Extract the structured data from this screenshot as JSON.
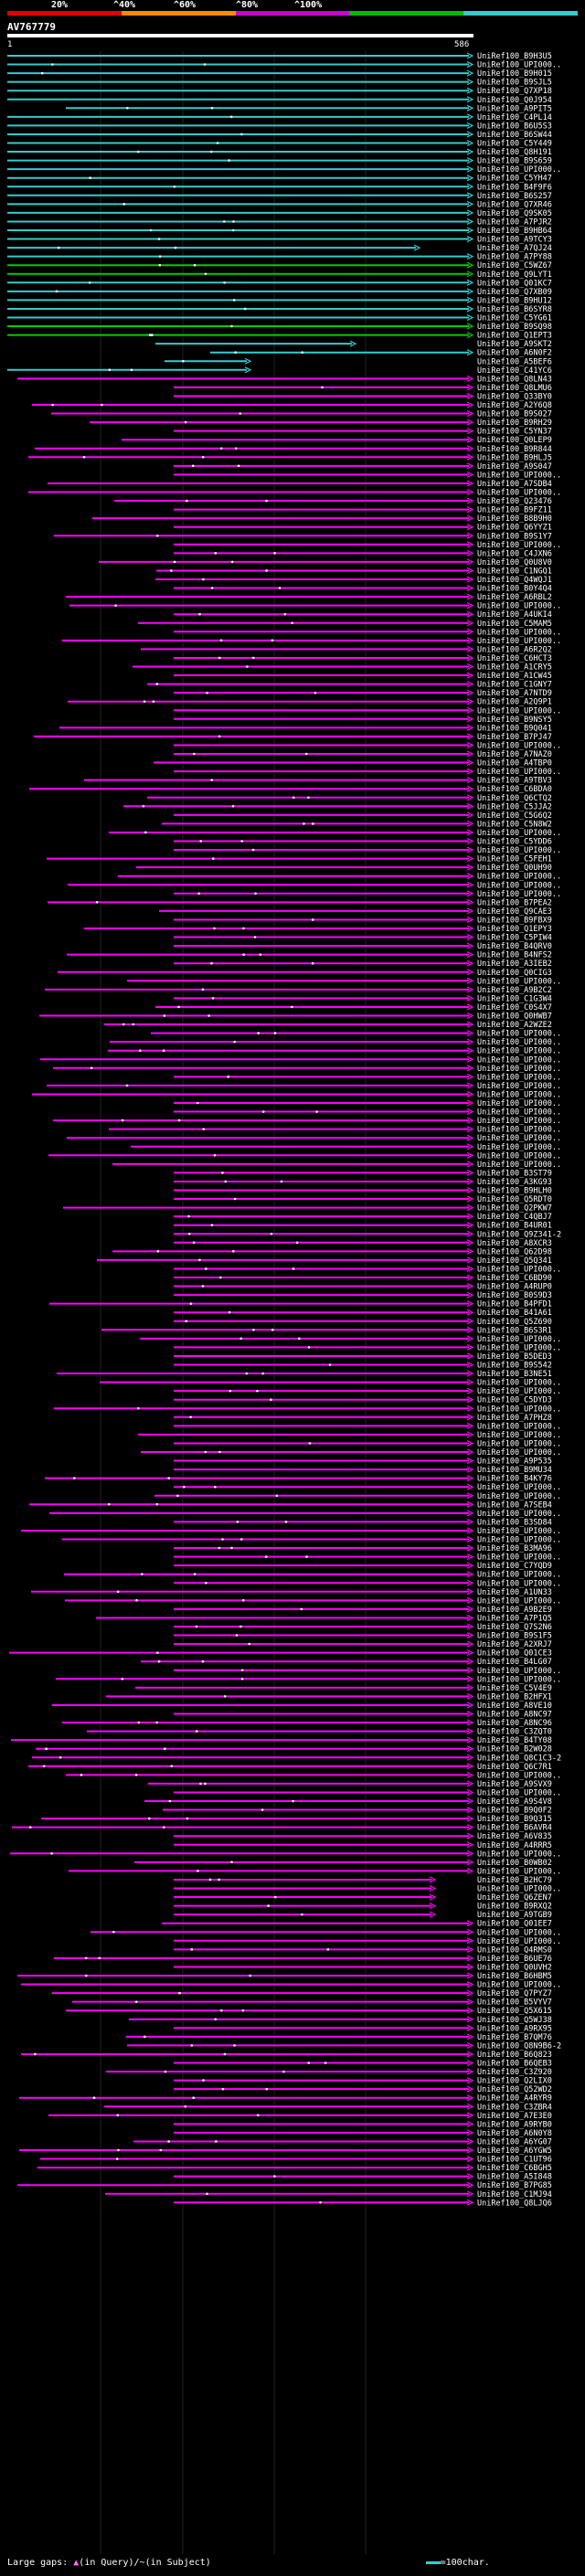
{
  "domain": "Chart",
  "query": {
    "id": "AV767779",
    "start_label": "1",
    "end_label": "586"
  },
  "colors": {
    "background": "#000000",
    "low": "#ff00ff",
    "mid": "#00cc00",
    "high": "#33cccc",
    "scale": [
      "#e00000",
      "#ff8800",
      "#cc00cc",
      "#00bb00",
      "#33cccc"
    ]
  },
  "scale_labels": [
    "20%",
    "^40%",
    "^60%",
    "^80%",
    "^100%"
  ],
  "footer": {
    "gap_prefix": "Large gaps:",
    "query_marker": "▲",
    "query_text": "(in Query)/",
    "subject_marker": "~",
    "subject_text": "(in Subject)",
    "legend_text": "=100char."
  },
  "chart_data": {
    "type": "alignment",
    "x_axis": {
      "min": 1,
      "max": 586
    },
    "hits": [
      "UniRef100_B9H3U5",
      "UniRef100_UPI000..",
      "UniRef100_B9H015",
      "UniRef100_B9SJL5",
      "UniRef100_Q7XP18",
      "UniRef100_Q0J954",
      "UniRef100_A9PIT5",
      "UniRef100_C4PL14",
      "UniRef100_B6U5S3",
      "UniRef100_B6SW44",
      "UniRef100_C5Y449",
      "UniRef100_Q8H191",
      "UniRef100_B9S659",
      "UniRef100_UPI000..",
      "UniRef100_C5YH47",
      "UniRef100_B4F9F6",
      "UniRef100_B6S257",
      "UniRef100_Q7XR46",
      "UniRef100_Q9SK05",
      "UniRef100_A7PJR2",
      "UniRef100_B9HB64",
      "UniRef100_A9TCY3",
      "UniRef100_A7QJ24",
      "UniRef100_A7PY88",
      "UniRef100_C5WZ67",
      "UniRef100_Q9LYT1",
      "UniRef100_Q01KC7",
      "UniRef100_Q7XB09",
      "UniRef100_B9HU12",
      "UniRef100_B6SYR8",
      "UniRef100_C5YG61",
      "UniRef100_B9SQ98",
      "UniRef100_Q1EPT3",
      "UniRef100_A9SKT2",
      "UniRef100_A6N0F2",
      "UniRef100_A5BEF6",
      "UniRef100_C41YC6",
      "UniRef100_Q8LN43",
      "UniRef100_Q8LMU6",
      "UniRef100_Q33BY0",
      "UniRef100_A2Y6Q8",
      "UniRef100_B9S027",
      "UniRef100_B9RH29",
      "UniRef100_C5YN37",
      "UniRef100_Q0LEP9",
      "UniRef100_B9R844",
      "UniRef100_B9HLJ5",
      "UniRef100_A9S047",
      "UniRef100_UPI000..",
      "UniRef100_A7SDB4",
      "UniRef100_UPI000..",
      "UniRef100_Q23476",
      "UniRef100_B9FZ11",
      "UniRef100_B8B9H0",
      "UniRef100_Q6YYZ1",
      "UniRef100_B9S1Y7",
      "UniRef100_UPI000..",
      "UniRef100_C4JXN6",
      "UniRef100_Q0U8V0",
      "UniRef100_C1NGQ1",
      "UniRef100_Q4WQJ1",
      "UniRef100_B0Y4Q4",
      "UniRef100_A6RBL2",
      "UniRef100_UPI000..",
      "UniRef100_A4UKI4",
      "UniRef100_C5MAM5",
      "UniRef100_UPI000..",
      "UniRef100_UPI000..",
      "UniRef100_A6R2Q2",
      "UniRef100_C6HCT3",
      "UniRef100_A1CRY5",
      "UniRef100_A1CW45",
      "UniRef100_C1GNY7",
      "UniRef100_A7NTD9",
      "UniRef100_A2Q9P1",
      "UniRef100_UPI000..",
      "UniRef100_B9NSY5",
      "UniRef100_B9Q041",
      "UniRef100_B7PJ47",
      "UniRef100_UPI000..",
      "UniRef100_A7NAZ0",
      "UniRef100_A4TBP0",
      "UniRef100_UPI000..",
      "UniRef100_A9TBV3",
      "UniRef100_C6BDA0",
      "UniRef100_Q6CTQ2",
      "UniRef100_C5JJA2",
      "UniRef100_C5G6Q2",
      "UniRef100_C5N8W2",
      "UniRef100_UPI000..",
      "UniRef100_C5YDD6",
      "UniRef100_UPI000..",
      "UniRef100_C5FEH1",
      "UniRef100_Q0UH90",
      "UniRef100_UPI000..",
      "UniRef100_UPI000..",
      "UniRef100_UPI000..",
      "UniRef100_B7PEA2",
      "UniRef100_Q9CAE3",
      "UniRef100_B9FBX9",
      "UniRef100_Q1EPY3",
      "UniRef100_C5PIW4",
      "UniRef100_B4QRV0",
      "UniRef100_B4NFS2",
      "UniRef100_A3IEB2",
      "UniRef100_Q0CIG3",
      "UniRef100_UPI000..",
      "UniRef100_A9B2C2",
      "UniRef100_C1G3W4",
      "UniRef100_C0S4X7",
      "UniRef100_Q0HWB7",
      "UniRef100_A2WZE2",
      "UniRef100_UPI000..",
      "UniRef100_UPI000..",
      "UniRef100_UPI000..",
      "UniRef100_UPI000..",
      "UniRef100_UPI000..",
      "UniRef100_UPI000..",
      "UniRef100_UPI000..",
      "UniRef100_UPI000..",
      "UniRef100_UPI000..",
      "UniRef100_UPI000..",
      "UniRef100_UPI000..",
      "UniRef100_UPI000..",
      "UniRef100_UPI000..",
      "UniRef100_UPI000..",
      "UniRef100_UPI000..",
      "UniRef100_UPI000..",
      "UniRef100_B3ST79",
      "UniRef100_A3KG93",
      "UniRef100_B9HLH0",
      "UniRef100_Q5RDT0",
      "UniRef100_Q2PKW7",
      "UniRef100_C4QBJ7",
      "UniRef100_B4UR01",
      "UniRef100_Q9Z341-2",
      "UniRef100_A8XCR3",
      "UniRef100_Q62D98",
      "UniRef100_Q5Q341",
      "UniRef100_UPI000..",
      "UniRef100_C6BD90",
      "UniRef100_A4RUP0",
      "UniRef100_B0S9D3",
      "UniRef100_B4PFD1",
      "UniRef100_B41A61",
      "UniRef100_Q5Z690",
      "UniRef100_B6S3R1",
      "UniRef100_UPI000..",
      "UniRef100_UPI000..",
      "UniRef100_B5DED3",
      "UniRef100_B9S542",
      "UniRef100_B3NE51",
      "UniRef100_UPI000..",
      "UniRef100_UPI000..",
      "UniRef100_C5DYD3",
      "UniRef100_UPI000..",
      "UniRef100_A7PHZ8",
      "UniRef100_UPI000..",
      "UniRef100_UPI000..",
      "UniRef100_UPI000..",
      "UniRef100_UPI000..",
      "UniRef100_A9P535",
      "UniRef100_B9MU34",
      "UniRef100_B4KY76",
      "UniRef100_UPI000..",
      "UniRef100_UPI000..",
      "UniRef100_A7SEB4",
      "UniRef100_UPI000..",
      "UniRef100_B3SD84",
      "UniRef100_UPI000..",
      "UniRef100_UPI000..",
      "UniRef100_B3MA96",
      "UniRef100_UPI000..",
      "UniRef100_C7YQD9",
      "UniRef100_UPI000..",
      "UniRef100_UPI000..",
      "UniRef100_A1UN33",
      "UniRef100_UPI000..",
      "UniRef100_A9B2E9",
      "UniRef100_A7P1Q5",
      "UniRef100_Q7S2N6",
      "UniRef100_B9S1F5",
      "UniRef100_A2XRJ7",
      "UniRef100_Q01CE3",
      "UniRef100_B4LG07",
      "UniRef100_UPI000..",
      "UniRef100_UPI000..",
      "UniRef100_C5V4E9",
      "UniRef100_B2HFX1",
      "UniRef100_A8VE10",
      "UniRef100_A8NC97",
      "UniRef100_A8NC96",
      "UniRef100_C3ZQT0",
      "UniRef100_B4TY08",
      "UniRef100_B2W028",
      "UniRef100_Q8C1C3-2",
      "UniRef100_Q6C7R1",
      "UniRef100_UPI000..",
      "UniRef100_A9SVX9",
      "UniRef100_UPI000..",
      "UniRef100_A9S4V8",
      "UniRef100_B9Q0F2",
      "UniRef100_B9Q315",
      "UniRef100_B6AVR4",
      "UniRef100_A6V835",
      "UniRef100_A4RRR5",
      "UniRef100_UPI000..",
      "UniRef100_B0WB02",
      "UniRef100_UPI000..",
      "UniRef100_B2HC79",
      "UniRef100_UPI000..",
      "UniRef100_Q6ZEN7",
      "UniRef100_B9RXQ2",
      "UniRef100_A9TGB9",
      "UniRef100_Q01EE7",
      "UniRef100_UPI000..",
      "UniRef100_UPI000..",
      "UniRef100_Q4RMS0",
      "UniRef100_B6UE76",
      "UniRef100_Q0UVH2",
      "UniRef100_B6HBM5",
      "UniRef100_UPI000..",
      "UniRef100_Q7PYZ7",
      "UniRef100_B5VYV7",
      "UniRef100_Q5X615",
      "UniRef100_Q5WJ38",
      "UniRef100_A9RX95",
      "UniRef100_B7QM76",
      "UniRef100_Q8N9B6-2",
      "UniRef100_B6Q823",
      "UniRef100_B6QEB3",
      "UniRef100_C3Z920",
      "UniRef100_Q2LIX0",
      "UniRef100_Q52WD2",
      "UniRef100_A4RYR9",
      "UniRef100_C3ZBR4",
      "UniRef100_A7E3E0",
      "UniRef100_A9RYB0",
      "UniRef100_A6N0Y8",
      "UniRef100_A6YG07",
      "UniRef100_A6YGW5",
      "UniRef100_C1UT96",
      "UniRef100_C6BGH5",
      "UniRef100_A5I848",
      "UniRef100_B7PG85",
      "UniRef100_C1MJ94",
      "UniRef100_Q8LJQ6"
    ]
  }
}
